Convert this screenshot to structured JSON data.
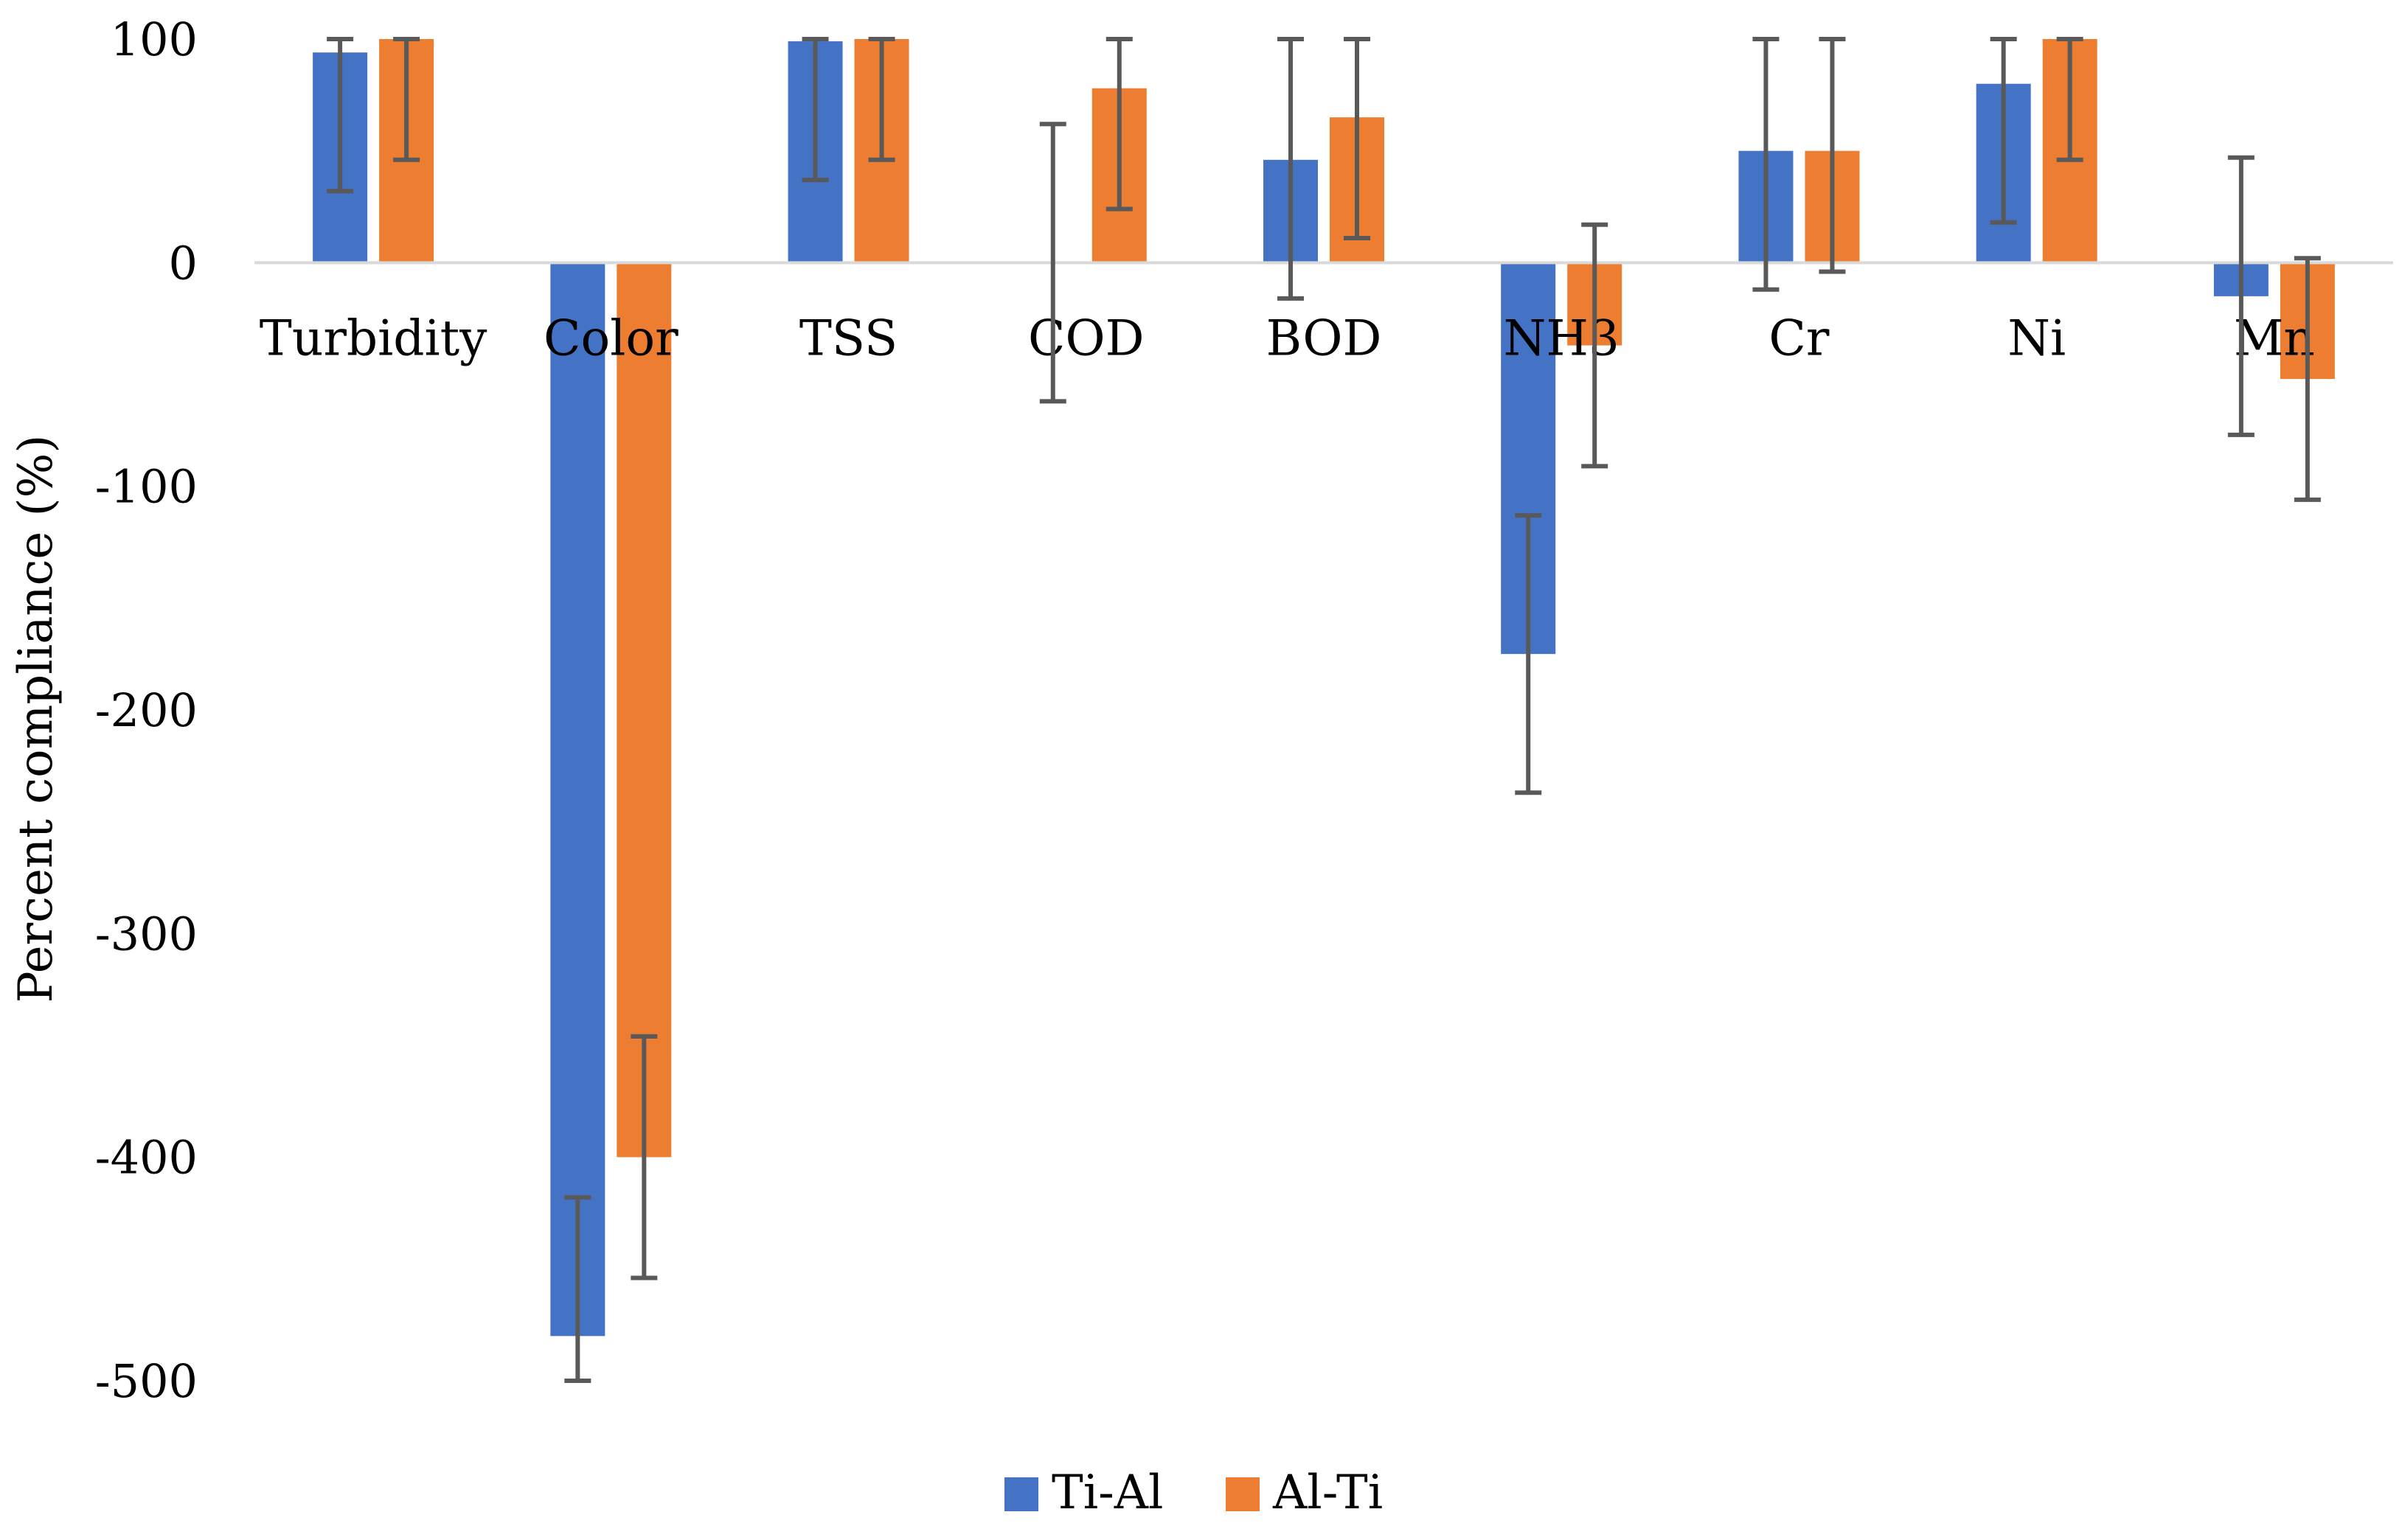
{
  "chart_data": {
    "type": "bar",
    "title": "",
    "xlabel": "",
    "ylabel": "Percent compliance (%)",
    "ylim": [
      -500,
      100
    ],
    "yticks": [
      100,
      0,
      -100,
      -200,
      -300,
      -400,
      -500
    ],
    "grid": false,
    "legend_position": "bottom-center",
    "error_bars": true,
    "categories": [
      "Turbidity",
      "Color",
      "TSS",
      "COD",
      "BOD",
      "NH3",
      "Cr",
      "Ni",
      "Mn"
    ],
    "series": [
      {
        "name": "Ti-Al",
        "color": "#4472C4",
        "values": [
          94,
          -480,
          99,
          0,
          46,
          -175,
          50,
          80,
          -15
        ],
        "error": [
          62,
          62,
          62,
          62,
          62,
          62,
          62,
          62,
          62
        ]
      },
      {
        "name": "Al-Ti",
        "color": "#ED7D31",
        "values": [
          100,
          -400,
          100,
          78,
          65,
          -37,
          50,
          100,
          -52
        ],
        "error": [
          54,
          54,
          54,
          54,
          54,
          54,
          54,
          54,
          54
        ]
      }
    ],
    "error_bar_color": "#595959",
    "axis_color": "#D9D9D9"
  }
}
